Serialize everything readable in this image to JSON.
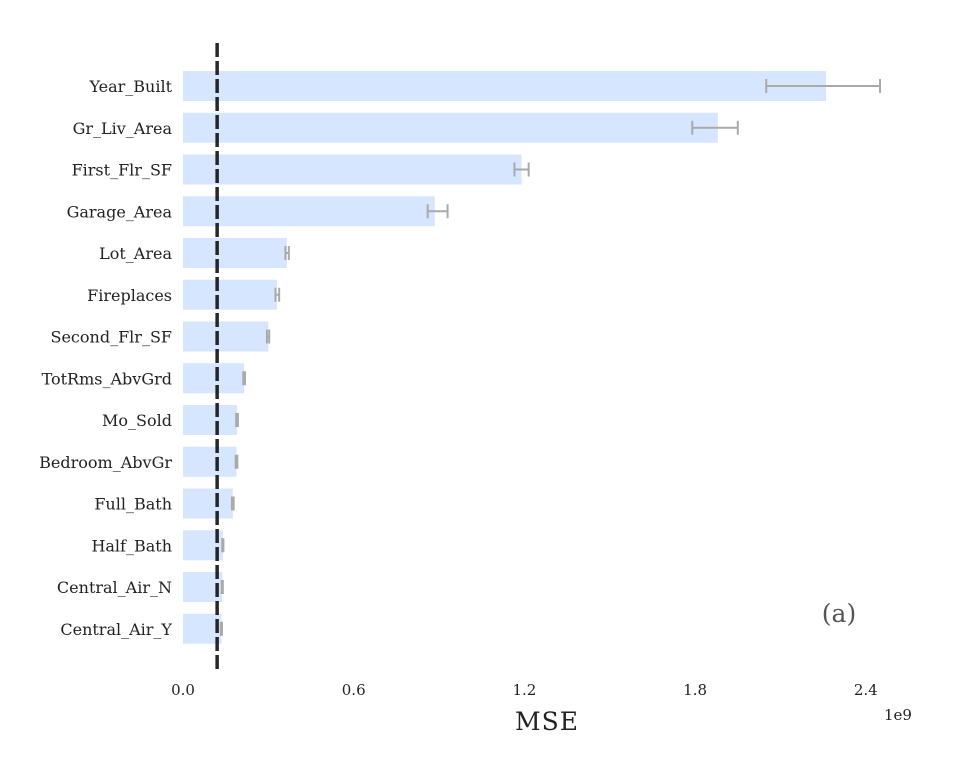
{
  "chart_data": {
    "type": "bar",
    "orientation": "horizontal",
    "categories": [
      "Year_Built",
      "Gr_Liv_Area",
      "First_Flr_SF",
      "Garage_Area",
      "Lot_Area",
      "Fireplaces",
      "Second_Flr_SF",
      "TotRms_AbvGrd",
      "Mo_Sold",
      "Bedroom_AbvGr",
      "Full_Bath",
      "Half_Bath",
      "Central_Air_N",
      "Central_Air_Y"
    ],
    "values": [
      2.26,
      1.88,
      1.19,
      0.885,
      0.365,
      0.33,
      0.3,
      0.215,
      0.19,
      0.188,
      0.175,
      0.14,
      0.138,
      0.135
    ],
    "error_low": [
      2.05,
      1.79,
      1.165,
      0.86,
      0.36,
      0.325,
      0.295,
      0.212,
      0.187,
      0.185,
      0.172,
      0.138,
      0.136,
      0.133
    ],
    "error_high": [
      2.45,
      1.95,
      1.215,
      0.93,
      0.372,
      0.338,
      0.303,
      0.218,
      0.193,
      0.191,
      0.178,
      0.142,
      0.14,
      0.137
    ],
    "reference_line": 0.12,
    "xlabel": "MSE",
    "x_offset_label": "1e9",
    "xticks": [
      "0.0",
      "0.6",
      "1.2",
      "1.8",
      "2.4"
    ],
    "xtick_values": [
      0,
      0.6,
      1.2,
      1.8,
      2.4
    ],
    "xlim": [
      0,
      2.56
    ],
    "panel_label": "(a)",
    "bar_color": "#d6e6ff",
    "error_color": "#aaaaaa",
    "reference_line_color": "#111111",
    "grid": false
  }
}
